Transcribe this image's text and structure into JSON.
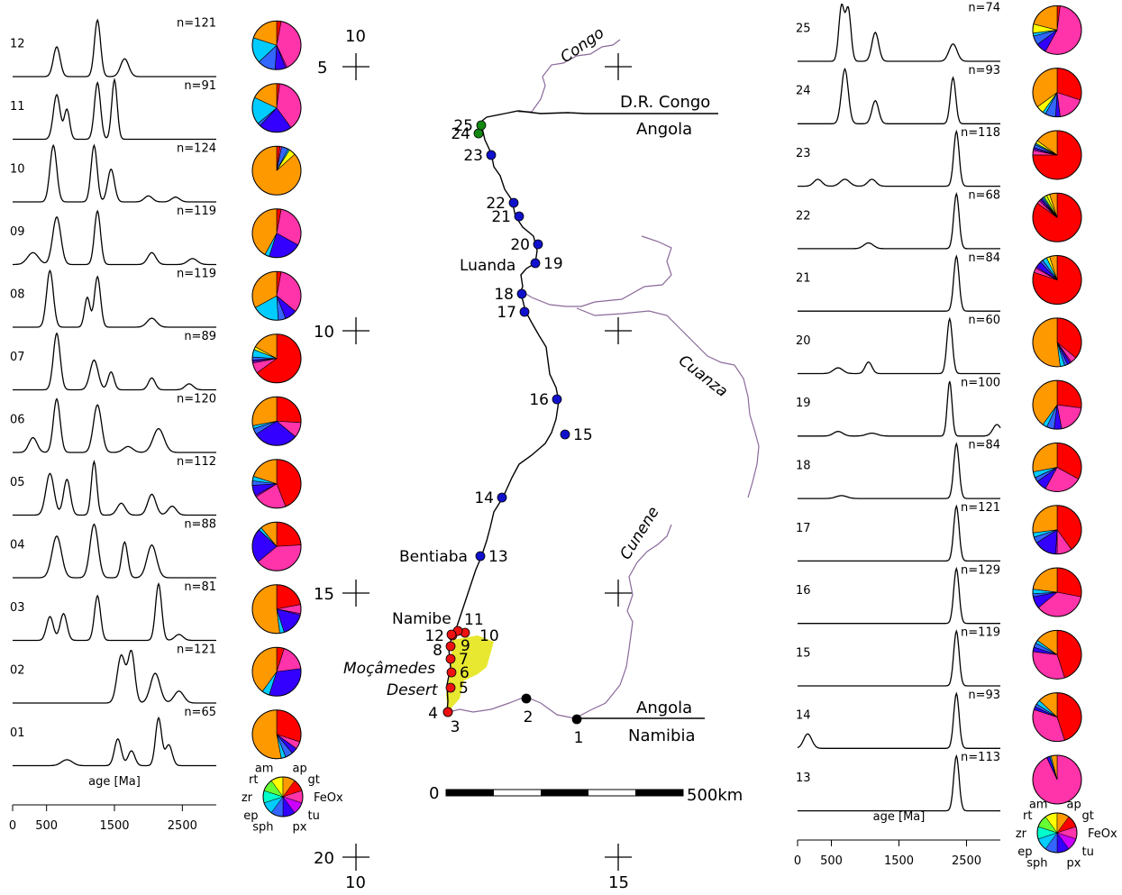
{
  "left_panel": {
    "samples": [
      {
        "id": "12",
        "n": "n=121",
        "pie": [
          3,
          40,
          1,
          7,
          12,
          17,
          0,
          0,
          0,
          0,
          0,
          0,
          20
        ]
      },
      {
        "id": "11",
        "n": "n=91",
        "pie": [
          2,
          38,
          0,
          22,
          2,
          18,
          0,
          0,
          0,
          0,
          0,
          0,
          18
        ]
      },
      {
        "id": "10",
        "n": "n=124",
        "pie": [
          2,
          1,
          0,
          0,
          4,
          1,
          0,
          0,
          0,
          0,
          0,
          4,
          78
        ]
      },
      {
        "id": "09",
        "n": "n=119",
        "pie": [
          3,
          30,
          0,
          22,
          0,
          3,
          0,
          0,
          0,
          0,
          0,
          0,
          42
        ]
      },
      {
        "id": "08",
        "n": "n=119",
        "pie": [
          3,
          33,
          0,
          8,
          5,
          18,
          0,
          0,
          0,
          0,
          0,
          0,
          33
        ]
      },
      {
        "id": "07",
        "n": "n=89",
        "pie": [
          65,
          7,
          1,
          1,
          2,
          5,
          0,
          0,
          0,
          0,
          0,
          2,
          17
        ]
      },
      {
        "id": "06",
        "n": "n=120",
        "pie": [
          26,
          10,
          0,
          30,
          4,
          2,
          0,
          0,
          0,
          0,
          0,
          0,
          28
        ]
      },
      {
        "id": "05",
        "n": "n=112",
        "pie": [
          44,
          22,
          1,
          7,
          3,
          3,
          0,
          0,
          0,
          0,
          0,
          0,
          20
        ]
      },
      {
        "id": "04",
        "n": "n=88",
        "pie": [
          24,
          40,
          0,
          23,
          0,
          2,
          0,
          0,
          0,
          0,
          0,
          0,
          11
        ]
      },
      {
        "id": "03",
        "n": "n=81",
        "pie": [
          22,
          6,
          1,
          16,
          0,
          3,
          0,
          0,
          0,
          0,
          0,
          0,
          52
        ]
      },
      {
        "id": "02",
        "n": "n=121",
        "pie": [
          5,
          18,
          0,
          32,
          0,
          5,
          0,
          0,
          0,
          0,
          0,
          0,
          40
        ]
      },
      {
        "id": "01",
        "n": "n=65",
        "pie": [
          30,
          5,
          0,
          4,
          5,
          3,
          0,
          0,
          0,
          0,
          0,
          0,
          53
        ]
      }
    ],
    "xlabel": "age [Ma]",
    "ticks": [
      "0",
      "500",
      "1500",
      "2500"
    ]
  },
  "right_panel": {
    "samples": [
      {
        "id": "25",
        "n": "n=74",
        "pie": [
          2,
          56,
          0,
          7,
          6,
          2,
          0,
          0,
          0,
          0,
          0,
          6,
          21
        ]
      },
      {
        "id": "24",
        "n": "n=93",
        "pie": [
          30,
          18,
          0,
          3,
          7,
          2,
          0,
          0,
          0,
          0,
          0,
          5,
          35
        ]
      },
      {
        "id": "23",
        "n": "n=118",
        "pie": [
          75,
          3,
          1,
          1,
          2,
          1,
          0,
          0,
          0,
          0,
          0,
          2,
          15
        ]
      },
      {
        "id": "22",
        "n": "n=68",
        "pie": [
          85,
          2,
          1,
          1,
          1,
          1,
          0,
          0,
          0,
          0,
          2,
          2,
          5
        ]
      },
      {
        "id": "21",
        "n": "n=84",
        "pie": [
          80,
          3,
          1,
          4,
          2,
          3,
          0,
          0,
          0,
          0,
          0,
          2,
          5
        ]
      },
      {
        "id": "20",
        "n": "n=60",
        "pie": [
          36,
          4,
          1,
          2,
          2,
          3,
          0,
          0,
          0,
          0,
          0,
          0,
          52
        ]
      },
      {
        "id": "19",
        "n": "n=100",
        "pie": [
          27,
          20,
          0,
          5,
          5,
          3,
          0,
          0,
          0,
          0,
          0,
          0,
          40
        ]
      },
      {
        "id": "18",
        "n": "n=84",
        "pie": [
          33,
          25,
          0,
          7,
          3,
          4,
          0,
          0,
          0,
          0,
          0,
          0,
          28
        ]
      },
      {
        "id": "17",
        "n": "n=121",
        "pie": [
          40,
          10,
          1,
          15,
          4,
          3,
          0,
          0,
          0,
          0,
          0,
          0,
          27
        ]
      },
      {
        "id": "16",
        "n": "n=129",
        "pie": [
          28,
          36,
          0,
          8,
          2,
          3,
          0,
          0,
          0,
          0,
          0,
          0,
          23
        ]
      },
      {
        "id": "15",
        "n": "n=119",
        "pie": [
          45,
          32,
          0,
          3,
          3,
          2,
          0,
          0,
          0,
          0,
          0,
          0,
          15
        ]
      },
      {
        "id": "14",
        "n": "n=93",
        "pie": [
          45,
          35,
          0,
          2,
          2,
          3,
          0,
          0,
          0,
          0,
          0,
          0,
          13
        ]
      },
      {
        "id": "13",
        "n": "n=113",
        "pie": [
          0,
          93,
          0,
          2,
          0,
          1,
          0,
          0,
          0,
          0,
          0,
          0,
          4
        ]
      }
    ],
    "xlabel": "age [Ma]",
    "ticks": [
      "0",
      "500",
      "1500",
      "2500"
    ]
  },
  "mineral_legend": {
    "labels": [
      "am",
      "ap",
      "gt",
      "FeOx",
      "tu",
      "px",
      "sph",
      "ep",
      "zr",
      "rt"
    ],
    "colors": [
      "#ffff00",
      "#ff9900",
      "#ff0000",
      "#ff33aa",
      "#cc00ff",
      "#3300ff",
      "#3366ff",
      "#00ccff",
      "#00ffcc",
      "#66ff33"
    ],
    "pie_colors": [
      "#ff0000",
      "#ff33aa",
      "#cc00ff",
      "#3300ff",
      "#3366ff",
      "#00ccff",
      "#00ffcc",
      "#00ff66",
      "#66ff33",
      "#99ff33",
      "#ccff00",
      "#ffff00",
      "#ff9900"
    ]
  },
  "map": {
    "graticule": {
      "top": "10",
      "bottom": "10",
      "bottom2": "15",
      "lat5": "5",
      "lat10": "10",
      "lat15": "15",
      "lat20": "20"
    },
    "countries": [
      "D.R. Congo",
      "Angola",
      "Angola",
      "Namibia"
    ],
    "rivers": [
      "Congo",
      "Cuanza",
      "Cunene"
    ],
    "places": [
      "Luanda",
      "Bentiaba",
      "Namibe",
      "Moçâmedes",
      "Desert"
    ],
    "scale": {
      "zero": "0",
      "end": "500km"
    },
    "sites": [
      {
        "id": "1",
        "group": "black"
      },
      {
        "id": "2",
        "group": "black"
      },
      {
        "id": "3",
        "group": "red"
      },
      {
        "id": "4",
        "group": "red"
      },
      {
        "id": "5",
        "group": "red"
      },
      {
        "id": "6",
        "group": "red"
      },
      {
        "id": "7",
        "group": "red"
      },
      {
        "id": "8",
        "group": "red"
      },
      {
        "id": "9",
        "group": "red"
      },
      {
        "id": "10",
        "group": "red"
      },
      {
        "id": "11",
        "group": "red"
      },
      {
        "id": "12",
        "group": "red"
      },
      {
        "id": "13",
        "group": "blue"
      },
      {
        "id": "14",
        "group": "blue"
      },
      {
        "id": "15",
        "group": "blue"
      },
      {
        "id": "16",
        "group": "blue"
      },
      {
        "id": "17",
        "group": "blue"
      },
      {
        "id": "18",
        "group": "blue"
      },
      {
        "id": "19",
        "group": "blue"
      },
      {
        "id": "20",
        "group": "blue"
      },
      {
        "id": "21",
        "group": "blue"
      },
      {
        "id": "22",
        "group": "blue"
      },
      {
        "id": "23",
        "group": "blue"
      },
      {
        "id": "24",
        "group": "green"
      },
      {
        "id": "25",
        "group": "green"
      }
    ],
    "group_colors": {
      "black": "#000000",
      "red": "#ee1111",
      "blue": "#1111cc",
      "green": "#118811"
    },
    "desert_color": "#e8e830",
    "river_color": "#8a6a9a"
  },
  "chart_data": [
    {
      "type": "line",
      "title": "",
      "xlabel": "age [Ma]",
      "ylabel": "",
      "xlim": [
        0,
        3000
      ],
      "xticks": [
        0,
        500,
        1500,
        2500
      ],
      "series": [
        {
          "name": "12",
          "peaks": [
            [
              650,
              0.5,
              50
            ],
            [
              1250,
              0.95,
              45
            ],
            [
              1650,
              0.3,
              60
            ]
          ]
        },
        {
          "name": "11",
          "peaks": [
            [
              650,
              0.75,
              50
            ],
            [
              800,
              0.5,
              40
            ],
            [
              1250,
              0.95,
              45
            ],
            [
              1500,
              1.0,
              40
            ]
          ]
        },
        {
          "name": "10",
          "peaks": [
            [
              600,
              0.95,
              50
            ],
            [
              1200,
              0.95,
              45
            ],
            [
              1450,
              0.55,
              50
            ],
            [
              2000,
              0.1,
              60
            ],
            [
              2400,
              0.08,
              60
            ]
          ]
        },
        {
          "name": "09",
          "peaks": [
            [
              300,
              0.2,
              80
            ],
            [
              650,
              0.8,
              60
            ],
            [
              1250,
              0.9,
              45
            ],
            [
              2050,
              0.2,
              60
            ],
            [
              2650,
              0.1,
              70
            ]
          ]
        },
        {
          "name": "08",
          "peaks": [
            [
              550,
              0.95,
              50
            ],
            [
              1100,
              0.5,
              40
            ],
            [
              1250,
              0.85,
              45
            ],
            [
              2050,
              0.15,
              70
            ]
          ]
        },
        {
          "name": "07",
          "peaks": [
            [
              650,
              0.95,
              50
            ],
            [
              1200,
              0.5,
              60
            ],
            [
              1450,
              0.3,
              45
            ],
            [
              2050,
              0.2,
              50
            ],
            [
              2600,
              0.1,
              60
            ]
          ]
        },
        {
          "name": "06",
          "peaks": [
            [
              300,
              0.25,
              60
            ],
            [
              650,
              0.9,
              50
            ],
            [
              1250,
              0.8,
              60
            ],
            [
              1700,
              0.1,
              70
            ],
            [
              2150,
              0.4,
              80
            ]
          ]
        },
        {
          "name": "05",
          "peaks": [
            [
              550,
              0.7,
              60
            ],
            [
              800,
              0.6,
              50
            ],
            [
              1200,
              0.9,
              40
            ],
            [
              1600,
              0.2,
              60
            ],
            [
              2050,
              0.35,
              60
            ],
            [
              2350,
              0.15,
              60
            ]
          ]
        },
        {
          "name": "04",
          "peaks": [
            [
              650,
              0.7,
              70
            ],
            [
              1200,
              0.9,
              60
            ],
            [
              1650,
              0.6,
              45
            ],
            [
              2050,
              0.55,
              70
            ]
          ]
        },
        {
          "name": "03",
          "peaks": [
            [
              550,
              0.4,
              50
            ],
            [
              750,
              0.45,
              50
            ],
            [
              1250,
              0.75,
              45
            ],
            [
              2150,
              0.95,
              45
            ],
            [
              2450,
              0.1,
              60
            ]
          ]
        },
        {
          "name": "02",
          "peaks": [
            [
              1600,
              0.8,
              60
            ],
            [
              1750,
              0.85,
              50
            ],
            [
              2100,
              0.5,
              70
            ],
            [
              2450,
              0.2,
              70
            ]
          ]
        },
        {
          "name": "01",
          "peaks": [
            [
              800,
              0.1,
              80
            ],
            [
              1550,
              0.45,
              50
            ],
            [
              1750,
              0.25,
              50
            ],
            [
              2150,
              0.8,
              45
            ],
            [
              2300,
              0.35,
              50
            ]
          ]
        }
      ]
    },
    {
      "type": "line",
      "title": "",
      "xlabel": "age [Ma]",
      "ylabel": "",
      "xlim": [
        0,
        3000
      ],
      "xticks": [
        0,
        500,
        1500,
        2500
      ],
      "series": [
        {
          "name": "25",
          "peaks": [
            [
              650,
              0.95,
              40
            ],
            [
              750,
              0.9,
              40
            ],
            [
              1150,
              0.5,
              50
            ],
            [
              2300,
              0.3,
              60
            ]
          ]
        },
        {
          "name": "24",
          "peaks": [
            [
              700,
              0.95,
              50
            ],
            [
              1150,
              0.4,
              50
            ],
            [
              2300,
              0.8,
              40
            ]
          ]
        },
        {
          "name": "23",
          "peaks": [
            [
              300,
              0.12,
              60
            ],
            [
              700,
              0.12,
              70
            ],
            [
              1100,
              0.12,
              60
            ],
            [
              2350,
              0.95,
              40
            ]
          ]
        },
        {
          "name": "22",
          "peaks": [
            [
              1050,
              0.1,
              70
            ],
            [
              2350,
              0.95,
              40
            ]
          ]
        },
        {
          "name": "21",
          "peaks": [
            [
              2350,
              0.95,
              40
            ]
          ]
        },
        {
          "name": "20",
          "peaks": [
            [
              600,
              0.1,
              70
            ],
            [
              1050,
              0.2,
              50
            ],
            [
              2250,
              0.95,
              40
            ]
          ]
        },
        {
          "name": "19",
          "peaks": [
            [
              600,
              0.08,
              70
            ],
            [
              1100,
              0.05,
              80
            ],
            [
              2250,
              0.95,
              35
            ],
            [
              2950,
              0.2,
              60
            ]
          ]
        },
        {
          "name": "18",
          "peaks": [
            [
              650,
              0.05,
              80
            ],
            [
              2350,
              0.95,
              40
            ]
          ]
        },
        {
          "name": "17",
          "peaks": [
            [
              2350,
              0.95,
              40
            ]
          ]
        },
        {
          "name": "16",
          "peaks": [
            [
              2350,
              0.95,
              40
            ]
          ]
        },
        {
          "name": "15",
          "peaks": [
            [
              2350,
              0.95,
              40
            ]
          ]
        },
        {
          "name": "14",
          "peaks": [
            [
              150,
              0.25,
              60
            ],
            [
              2350,
              0.95,
              40
            ]
          ]
        },
        {
          "name": "13",
          "peaks": [
            [
              2350,
              0.95,
              40
            ]
          ]
        }
      ]
    }
  ]
}
